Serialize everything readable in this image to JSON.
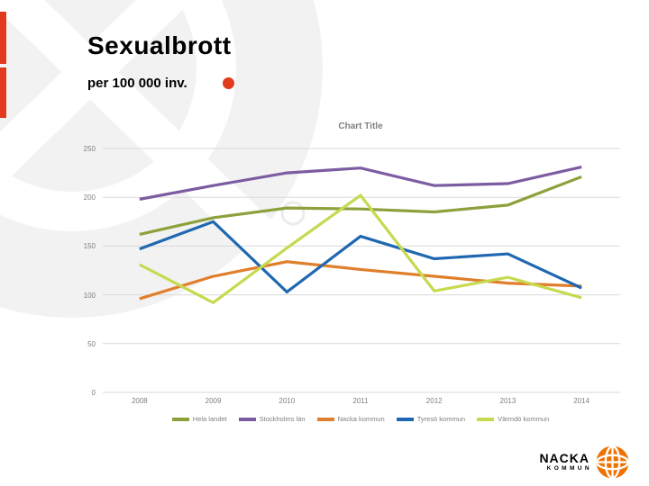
{
  "slide": {
    "title": "Sexualbrott",
    "subtitle": "per 100 000 inv."
  },
  "chart_data": {
    "type": "line",
    "title": "Chart Title",
    "categories": [
      "2008",
      "2009",
      "2010",
      "2011",
      "2012",
      "2013",
      "2014"
    ],
    "series": [
      {
        "name": "Hela landet",
        "color": "#8CA13C",
        "values": [
          162,
          179,
          189,
          188,
          185,
          192,
          221
        ]
      },
      {
        "name": "Stockholms län",
        "color": "#7C5CA0",
        "values": [
          198,
          212,
          225,
          230,
          212,
          214,
          231
        ]
      },
      {
        "name": "Nacka kommun",
        "color": "#E07F2B",
        "values": [
          96,
          119,
          134,
          126,
          119,
          112,
          109
        ]
      },
      {
        "name": "Tyresö kommun",
        "color": "#1F68B1",
        "values": [
          147,
          175,
          103,
          160,
          137,
          142,
          107
        ]
      },
      {
        "name": "Värmdö kommun",
        "color": "#C6D94F",
        "values": [
          131,
          92,
          148,
          202,
          104,
          118,
          97
        ]
      }
    ],
    "xlabel": "",
    "ylabel": "",
    "ylim": [
      0,
      250
    ],
    "ytick_interval": 50,
    "grid": "horizontal",
    "legend_position": "bottom"
  },
  "logo": {
    "name_line1": "NACKA",
    "name_line2": "KOMMUN"
  },
  "colors": {
    "accent_red": "#E23A1C",
    "logo_orange": "#EE7203",
    "axis_text": "#7F7F7F",
    "gridline": "#DADADA",
    "chart_title_text": "#7F7F7F",
    "watermark_gray": "#F2F2F2"
  }
}
